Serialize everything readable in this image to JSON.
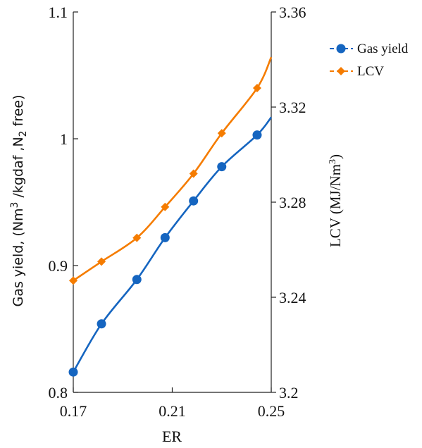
{
  "chart_data": {
    "type": "line",
    "x": [
      0.17,
      0.1814,
      0.1957,
      0.2071,
      0.2186,
      0.23,
      0.2443
    ],
    "xlabel": "ER",
    "xlim": [
      0.17,
      0.25
    ],
    "xticks": [
      "0.17",
      "0.21",
      "0.25"
    ],
    "y_left": {
      "label_parts": [
        "Gas yield, (Nm",
        "3",
        " /kgdaf ,N",
        "2",
        " free)"
      ],
      "lim": [
        0.8,
        1.1
      ],
      "ticks": [
        "0.8",
        "0.9",
        "1",
        "1.1"
      ]
    },
    "y_right": {
      "label_parts": [
        "LCV (MJ/Nm",
        "3",
        ")"
      ],
      "lim": [
        3.2,
        3.36
      ],
      "ticks": [
        "3.2",
        "3.24",
        "3.28",
        "3.32",
        "3.36"
      ]
    },
    "series": [
      {
        "name": "Gas yield",
        "axis": "left",
        "color": "#1565c0",
        "marker": "circle",
        "values": [
          0.816,
          0.854,
          0.889,
          0.922,
          0.951,
          0.978,
          1.003
        ],
        "curve_end": 1.017
      },
      {
        "name": "LCV",
        "axis": "right",
        "color": "#f57c00",
        "marker": "diamond",
        "values": [
          3.247,
          3.255,
          3.265,
          3.278,
          3.292,
          3.309,
          3.328
        ],
        "curve_end": 3.341
      }
    ],
    "legend_position": "right, outside plot",
    "grid": false
  }
}
